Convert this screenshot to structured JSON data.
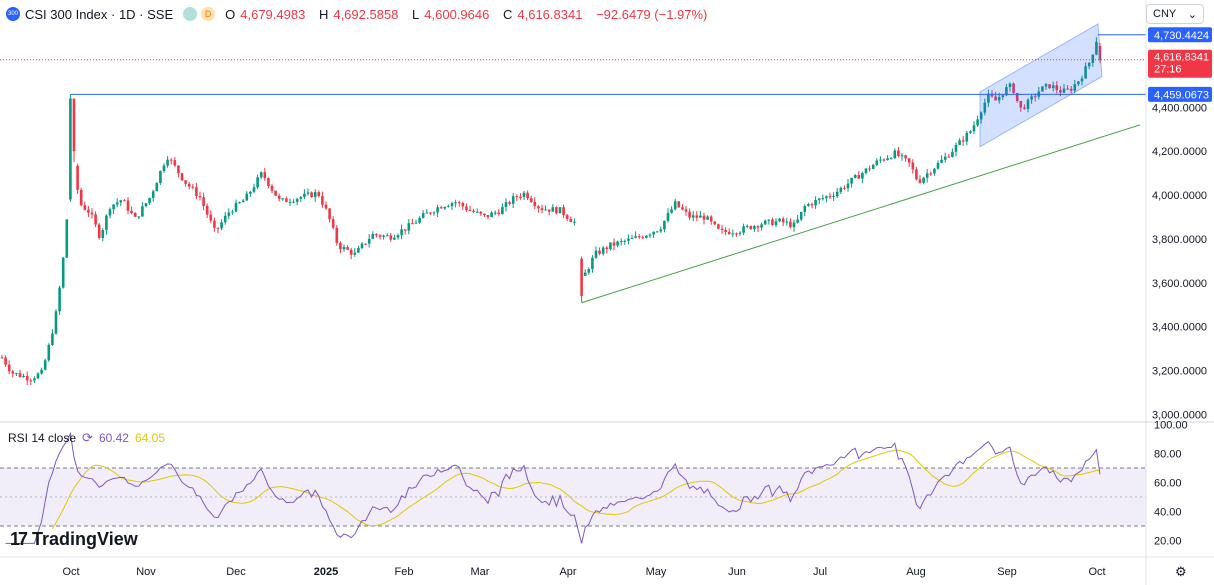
{
  "header": {
    "logo_text": "300",
    "title": "CSI 300 Index · 1D · SSE",
    "badge_d": "D",
    "open_label": "O",
    "open_value": "4,679.4983",
    "high_label": "H",
    "high_value": "4,692.5858",
    "low_label": "L",
    "low_value": "4,600.9646",
    "close_label": "C",
    "close_value": "4,616.8341",
    "change": "−92.6479 (−1.97%)"
  },
  "currency": {
    "value": "CNY",
    "chevron": "chevron-down-icon"
  },
  "rsi_header": {
    "name": "RSI 14 close",
    "value": "60.42",
    "ma_value": "64.05",
    "icon": "cycle-icon"
  },
  "branding": {
    "text": "TradingView"
  },
  "settings": {
    "icon": "gear-icon"
  },
  "colors": {
    "up": "#089981",
    "down": "#f23645",
    "rsi": "#7e57c2",
    "rsi_ma": "#e0c800",
    "blue": "#2962ff",
    "green_line": "#43a047"
  },
  "chart_data": {
    "type": "candlestick",
    "price_axis": {
      "ticks": [
        "4,400.0000",
        "4,200.0000",
        "4,000.0000",
        "3,800.0000",
        "3,600.0000",
        "3,400.0000",
        "3,200.0000",
        "3,000.0000"
      ],
      "range": [
        3000,
        4800
      ]
    },
    "time_axis": {
      "labels": [
        "Oct",
        "Nov",
        "Dec",
        "2025",
        "Feb",
        "Mar",
        "Apr",
        "May",
        "Jun",
        "Jul",
        "Aug",
        "Sep",
        "Oct"
      ]
    },
    "price_labels": [
      {
        "text": "4,730.4424",
        "value": 4730.4424,
        "kind": "line-label"
      },
      {
        "text": "4,616.8341",
        "value": 4616.8341,
        "kind": "last-price",
        "countdown": "27:16"
      },
      {
        "text": "4,459.0673",
        "value": 4459.0673,
        "kind": "line-label"
      }
    ],
    "horizontal_lines": [
      {
        "value": 4459.0673
      },
      {
        "value": 4730.4424
      }
    ],
    "trend_line": {
      "from": {
        "date": "Apr",
        "value": 3510
      },
      "to": {
        "date": "Oct",
        "value": 4320
      }
    },
    "rsi": {
      "name": "RSI 14 close",
      "ticks": [
        "100.00",
        "80.00",
        "60.00",
        "40.00",
        "20.00"
      ],
      "range": [
        10,
        100
      ],
      "bands": [
        70,
        50,
        30
      ]
    },
    "key_closes": [
      {
        "date": "Sep 2024",
        "close": 3160
      },
      {
        "date": "Oct 8 2024",
        "close": 4256
      },
      {
        "date": "Nov 2024",
        "close": 4120
      },
      {
        "date": "Dec 2024",
        "close": 3950
      },
      {
        "date": "Jan 2025",
        "close": 3750
      },
      {
        "date": "Feb 2025",
        "close": 3920
      },
      {
        "date": "Mar 2025",
        "close": 3900
      },
      {
        "date": "Apr 7 2025",
        "close": 3590
      },
      {
        "date": "May 2025",
        "close": 3850
      },
      {
        "date": "Jun 2025",
        "close": 3900
      },
      {
        "date": "Jul 2025",
        "close": 4080
      },
      {
        "date": "Aug 2025",
        "close": 4470
      },
      {
        "date": "Sep 2025",
        "close": 4540
      },
      {
        "date": "Oct 2025",
        "close": 4616.8341
      }
    ]
  }
}
